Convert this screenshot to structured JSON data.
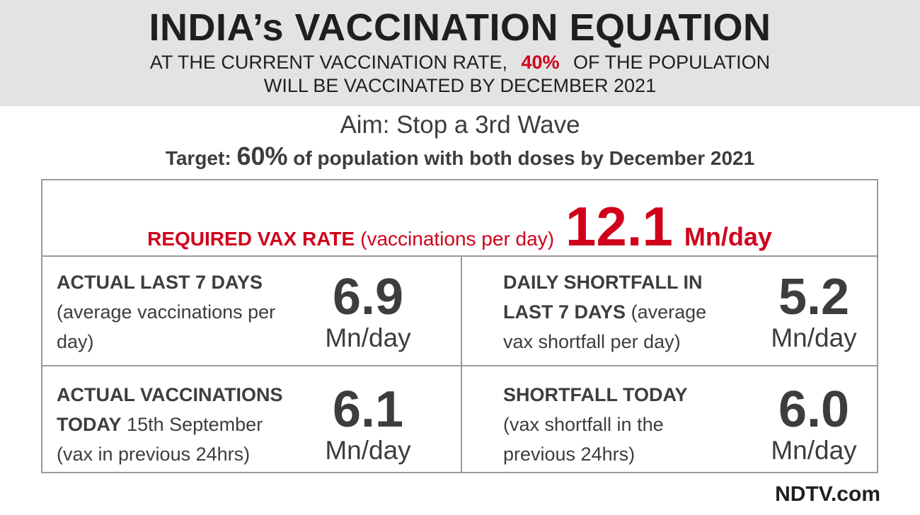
{
  "header": {
    "title": "INDIA’s VACCINATION EQUATION",
    "line1_pre": "AT THE CURRENT VACCINATION RATE,",
    "line1_pct": "40%",
    "line1_post": "OF THE POPULATION",
    "line2": "WILL BE VACCINATED BY DECEMBER 2021"
  },
  "aim": "Aim: Stop a 3rd Wave",
  "target": {
    "pre": "Target:",
    "pct": "60%",
    "post": "of population with both doses by December 2021"
  },
  "required": {
    "label": "REQUIRED VAX RATE",
    "paren": "(vaccinations per day)",
    "value": "12.1",
    "unit": "Mn/day"
  },
  "cells": {
    "actual7": {
      "bold": "ACTUAL LAST 7 DAYS",
      "rest": "(average vaccinations per day)",
      "value": "6.9",
      "unit": "Mn/day"
    },
    "shortfall7": {
      "bold_a": "DAILY SHORTFALL IN",
      "bold_b": "LAST 7 DAYS",
      "rest_a": "(average",
      "rest_b": "vax shortfall per day)",
      "value": "5.2",
      "unit": "Mn/day"
    },
    "today": {
      "bold_a": "ACTUAL VACCINATIONS",
      "bold_b": "TODAY",
      "rest_a": "15th September",
      "rest_b": "(vax in previous 24hrs)",
      "value": "6.1",
      "unit": "Mn/day"
    },
    "shortfall_today": {
      "bold": "SHORTFALL TODAY",
      "rest_a": "(vax shortfall in the",
      "rest_b": "previous 24hrs)",
      "value": "6.0",
      "unit": "Mn/day"
    }
  },
  "logo": "NDTV.com",
  "colors": {
    "accent": "#d0021b",
    "header_bg": "#e3e3e3",
    "text": "#3d3d3d",
    "border": "#9a9a9a"
  }
}
